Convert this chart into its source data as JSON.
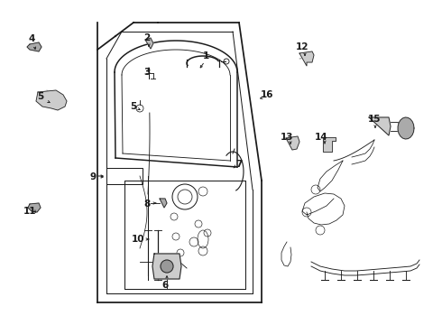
{
  "bg_color": "#ffffff",
  "line_color": "#1a1a1a",
  "lw": 0.9
}
